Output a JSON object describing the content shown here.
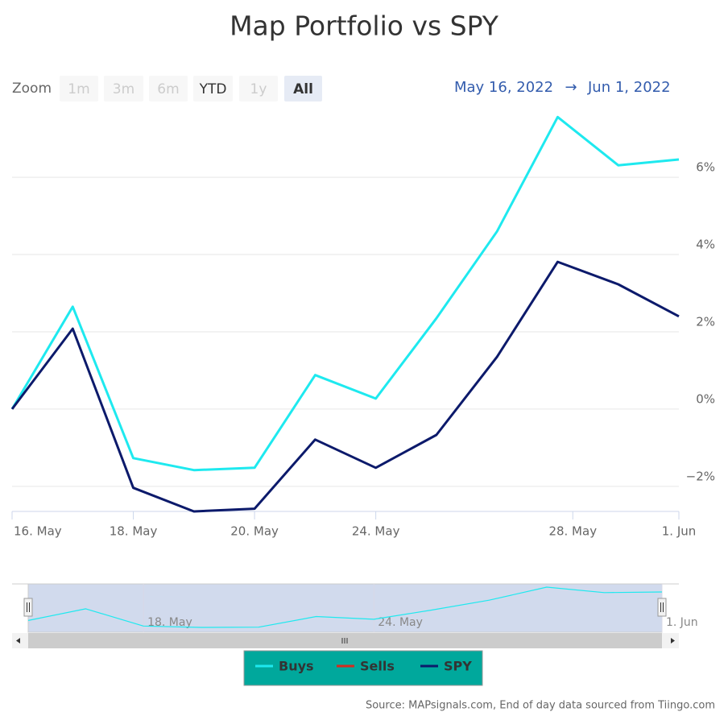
{
  "chart_data": {
    "type": "line",
    "title": "Map Portfolio vs SPY",
    "zoom": {
      "label": "Zoom",
      "buttons": [
        "1m",
        "3m",
        "6m",
        "YTD",
        "1y",
        "All"
      ],
      "disabled": [
        true,
        true,
        true,
        false,
        true,
        false
      ],
      "selected": "All"
    },
    "range": {
      "from": "May 16, 2022",
      "arrow": "→",
      "to": "Jun 1, 2022"
    },
    "x": [
      "2022-05-16",
      "2022-05-17",
      "2022-05-18",
      "2022-05-19",
      "2022-05-20",
      "2022-05-23",
      "2022-05-24",
      "2022-05-25",
      "2022-05-26",
      "2022-05-27",
      "2022-05-31",
      "2022-06-01"
    ],
    "xticks": [
      {
        "value": "2022-05-16",
        "label": "16. May"
      },
      {
        "value": "2022-05-18",
        "label": "18. May"
      },
      {
        "value": "2022-05-20",
        "label": "20. May"
      },
      {
        "value": "2022-05-24",
        "label": "24. May"
      },
      {
        "value": "2022-05-28",
        "label": "28. May"
      },
      {
        "value": "2022-06-01",
        "label": "1. Jun"
      }
    ],
    "series": [
      {
        "name": "Buys",
        "color": "#1ee9ef",
        "values": [
          0,
          2.65,
          -1.27,
          -1.58,
          -1.52,
          0.88,
          0.27,
          2.35,
          4.6,
          7.56,
          6.31,
          6.46
        ]
      },
      {
        "name": "Sells",
        "color": "#d62a1e",
        "values": [
          null,
          null,
          null,
          null,
          null,
          null,
          null,
          null,
          null,
          null,
          null,
          null
        ]
      },
      {
        "name": "SPY",
        "color": "#0c1a6b",
        "values": [
          0,
          2.08,
          -2.04,
          -2.65,
          -2.58,
          -0.79,
          -1.52,
          -0.67,
          1.35,
          3.81,
          3.23,
          2.4
        ]
      }
    ],
    "ylim": [
      -2.65,
      7.67
    ],
    "yticks": [
      {
        "value": -2,
        "label": "−2%"
      },
      {
        "value": 0,
        "label": "0%"
      },
      {
        "value": 2,
        "label": "2%"
      },
      {
        "value": 4,
        "label": "4%"
      },
      {
        "value": 6,
        "label": "6%"
      }
    ],
    "grid": true,
    "navigator": {
      "series": 0,
      "xticks": [
        {
          "value": "2022-05-18",
          "label": "18. May"
        },
        {
          "value": "2022-05-24",
          "label": "24. May"
        },
        {
          "value": "2022-06-01",
          "label": "1. Jun"
        }
      ]
    },
    "legend": "bottom",
    "legend_color": "#00a89c",
    "source": "Source: MAPsignals.com, End of day data sourced from Tiingo.com"
  }
}
